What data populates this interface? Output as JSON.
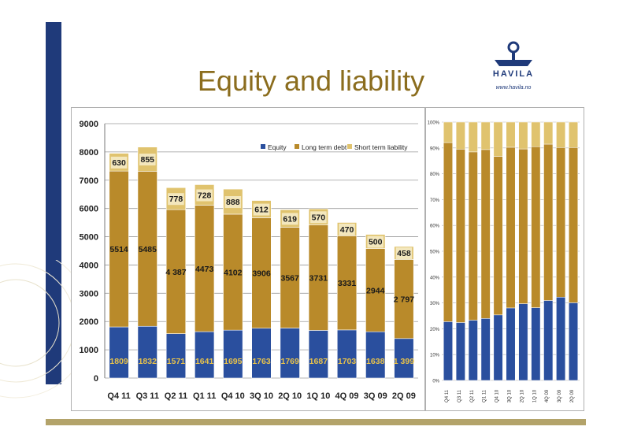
{
  "title": "Equity and liability",
  "logo": {
    "word": "HAVILA",
    "url": "www.havila.no"
  },
  "colors": {
    "equity": "#2a4f9e",
    "long_term_debt": "#b98a2a",
    "short_term_liability": "#e0c36e",
    "title": "#8b6d1e",
    "brand": "#1f3a7a",
    "accent_bar": "#b3a36a"
  },
  "chart_data": [
    {
      "type": "bar",
      "stacked": true,
      "categories": [
        "Q4 11",
        "Q3 11",
        "Q2 11",
        "Q1 11",
        "Q4 10",
        "3Q 10",
        "2Q 10",
        "1Q 10",
        "4Q 09",
        "3Q 09",
        "2Q 09"
      ],
      "series": [
        {
          "name": "Equity",
          "values": [
            1809,
            1832,
            1571,
            1641,
            1695,
            1763,
            1769,
            1687,
            1703,
            1638,
            1399
          ],
          "labels": [
            "1809",
            "1832",
            "1571",
            "1641",
            "1695",
            "1763",
            "1769",
            "1687",
            "1703",
            "1638",
            "1 399"
          ]
        },
        {
          "name": "Long term debt",
          "values": [
            5514,
            5485,
            4387,
            4473,
            4102,
            3906,
            3567,
            3731,
            3331,
            2944,
            2797
          ],
          "labels": [
            "5514",
            "5485",
            "4 387",
            "4473",
            "4102",
            "3906",
            "3567",
            "3731",
            "3331",
            "2944",
            "2 797"
          ]
        },
        {
          "name": "Short term liability",
          "values": [
            630,
            855,
            778,
            728,
            888,
            612,
            619,
            570,
            470,
            500,
            458
          ],
          "labels": [
            "630",
            "855",
            "778",
            "728",
            "888",
            "612",
            "619",
            "570",
            "470",
            "500",
            "458"
          ]
        }
      ],
      "yticks": [
        "0",
        "1000",
        "2000",
        "3000",
        "4000",
        "5000",
        "6000",
        "7000",
        "8000",
        "9000"
      ],
      "ylim": [
        0,
        9000
      ],
      "grid": true,
      "legend": "top-right"
    },
    {
      "type": "bar",
      "stacked": true,
      "percent": true,
      "categories": [
        "Q4 11",
        "Q3 11",
        "Q2 11",
        "Q1 11",
        "Q4 10",
        "3Q 10",
        "2Q 10",
        "1Q 10",
        "4Q 09",
        "3Q 09",
        "2Q 09"
      ],
      "series_names": [
        "Equity",
        "Long term debt",
        "Short term liability"
      ],
      "yticks": [
        "0%",
        "10%",
        "20%",
        "30%",
        "40%",
        "50%",
        "60%",
        "70%",
        "80%",
        "90%",
        "100%"
      ],
      "ylim": [
        0,
        100
      ],
      "grid": true
    }
  ]
}
